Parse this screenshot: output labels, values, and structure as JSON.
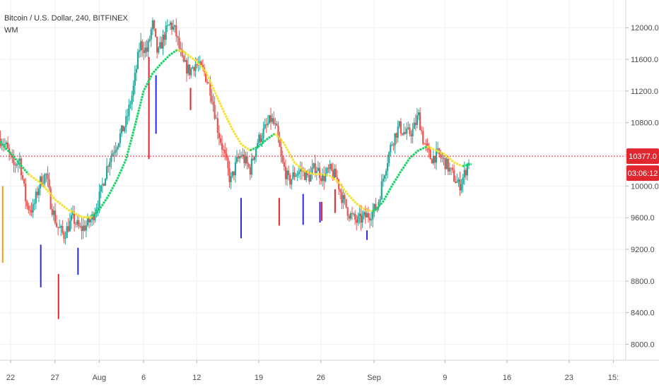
{
  "chart_data": {
    "type": "candlestick",
    "title": "Bitcoin / U.S. Dollar, 240, BITFINEX",
    "indicator": "WM",
    "y_ticks": [
      8000,
      8400,
      8800,
      9200,
      9600,
      10000,
      10400,
      10800,
      11200,
      11600,
      12000
    ],
    "y_tick_labels": [
      "8000.0",
      "8400.0",
      "8800.0",
      "9200.0",
      "9600.0",
      "10000.0",
      "10400.0",
      "10800.0",
      "11200.0",
      "11600.0",
      "12000.0"
    ],
    "ylim": [
      7800,
      12350
    ],
    "x_ticks": [
      {
        "label": "22",
        "day": -10
      },
      {
        "label": "27",
        "day": -5
      },
      {
        "label": "Aug",
        "day": 0
      },
      {
        "label": "6",
        "day": 5
      },
      {
        "label": "12",
        "day": 11
      },
      {
        "label": "19",
        "day": 18
      },
      {
        "label": "26",
        "day": 25
      },
      {
        "label": "Sep",
        "day": 31
      },
      {
        "label": "9",
        "day": 39
      },
      {
        "label": "16",
        "day": 46
      },
      {
        "label": "23",
        "day": 53
      },
      {
        "label": "15:",
        "day": 58
      }
    ],
    "xlim": [
      -11.2,
      59.4
    ],
    "price_anchors": [
      [
        -11.2,
        10600
      ],
      [
        -10.5,
        10500
      ],
      [
        -9.7,
        10250
      ],
      [
        -9.0,
        10350
      ],
      [
        -8.2,
        9750
      ],
      [
        -7.5,
        9700
      ],
      [
        -6.7,
        10050
      ],
      [
        -6.0,
        10150
      ],
      [
        -5.5,
        9800
      ],
      [
        -4.8,
        9500
      ],
      [
        -4.0,
        9380
      ],
      [
        -3.0,
        9600
      ],
      [
        -2.2,
        9450
      ],
      [
        -1.5,
        9500
      ],
      [
        -0.8,
        9600
      ],
      [
        0.0,
        9850
      ],
      [
        1.0,
        10300
      ],
      [
        2.0,
        10550
      ],
      [
        3.0,
        10800
      ],
      [
        3.8,
        11200
      ],
      [
        4.6,
        11800
      ],
      [
        5.4,
        11700
      ],
      [
        6.0,
        12050
      ],
      [
        6.6,
        11650
      ],
      [
        7.3,
        11900
      ],
      [
        8.0,
        12050
      ],
      [
        8.6,
        11950
      ],
      [
        9.4,
        11550
      ],
      [
        10.2,
        11450
      ],
      [
        10.8,
        11550
      ],
      [
        11.8,
        11450
      ],
      [
        12.6,
        11200
      ],
      [
        13.4,
        10700
      ],
      [
        14.2,
        10350
      ],
      [
        14.8,
        10050
      ],
      [
        15.5,
        10300
      ],
      [
        16.0,
        10400
      ],
      [
        17.0,
        10200
      ],
      [
        17.8,
        10550
      ],
      [
        18.6,
        10700
      ],
      [
        19.4,
        10850
      ],
      [
        20.0,
        10700
      ],
      [
        20.6,
        10300
      ],
      [
        21.4,
        10050
      ],
      [
        22.0,
        10150
      ],
      [
        22.8,
        10200
      ],
      [
        23.6,
        10100
      ],
      [
        24.4,
        10250
      ],
      [
        25.2,
        10100
      ],
      [
        26.0,
        10200
      ],
      [
        26.8,
        10100
      ],
      [
        27.4,
        9850
      ],
      [
        28.2,
        9650
      ],
      [
        29.0,
        9550
      ],
      [
        29.8,
        9600
      ],
      [
        30.6,
        9650
      ],
      [
        31.4,
        9750
      ],
      [
        32.2,
        10200
      ],
      [
        33.0,
        10550
      ],
      [
        33.8,
        10750
      ],
      [
        34.6,
        10650
      ],
      [
        35.4,
        10700
      ],
      [
        36.0,
        10900
      ],
      [
        36.6,
        10550
      ],
      [
        37.4,
        10350
      ],
      [
        38.2,
        10400
      ],
      [
        39.0,
        10300
      ],
      [
        39.8,
        10150
      ],
      [
        40.6,
        10000
      ],
      [
        41.2,
        10150
      ],
      [
        41.8,
        10377
      ]
    ],
    "ma_anchors": [
      [
        -11.2,
        10560
      ],
      [
        -9.5,
        10350
      ],
      [
        -8.0,
        10150
      ],
      [
        -6.5,
        10030
      ],
      [
        -5.0,
        9830
      ],
      [
        -3.5,
        9700
      ],
      [
        -2.0,
        9610
      ],
      [
        -1.0,
        9600
      ],
      [
        0.0,
        9700
      ],
      [
        1.0,
        9870
      ],
      [
        2.0,
        10080
      ],
      [
        3.0,
        10330
      ],
      [
        4.0,
        10750
      ],
      [
        5.0,
        11200
      ],
      [
        6.0,
        11420
      ],
      [
        7.0,
        11550
      ],
      [
        8.0,
        11660
      ],
      [
        8.8,
        11720
      ],
      [
        9.5,
        11700
      ],
      [
        11.0,
        11570
      ],
      [
        12.0,
        11450
      ],
      [
        13.0,
        11200
      ],
      [
        14.0,
        10950
      ],
      [
        15.0,
        10720
      ],
      [
        16.0,
        10530
      ],
      [
        17.0,
        10450
      ],
      [
        18.0,
        10500
      ],
      [
        19.0,
        10600
      ],
      [
        19.8,
        10660
      ],
      [
        20.8,
        10550
      ],
      [
        22.0,
        10300
      ],
      [
        23.0,
        10200
      ],
      [
        24.0,
        10150
      ],
      [
        25.0,
        10150
      ],
      [
        26.0,
        10130
      ],
      [
        27.0,
        10050
      ],
      [
        28.0,
        9900
      ],
      [
        29.0,
        9780
      ],
      [
        30.0,
        9700
      ],
      [
        31.0,
        9680
      ],
      [
        32.0,
        9800
      ],
      [
        33.0,
        10000
      ],
      [
        34.0,
        10180
      ],
      [
        35.0,
        10350
      ],
      [
        36.0,
        10450
      ],
      [
        37.0,
        10500
      ],
      [
        38.0,
        10450
      ],
      [
        39.0,
        10400
      ],
      [
        40.0,
        10300
      ],
      [
        41.0,
        10250
      ],
      [
        42.0,
        10280
      ]
    ],
    "trend_segments": [
      {
        "from": -11.2,
        "to": -8.0,
        "color": "#19d36a"
      },
      {
        "from": -8.0,
        "to": -0.8,
        "color": "#f5e12c"
      },
      {
        "from": -0.8,
        "to": 8.8,
        "color": "#19d36a"
      },
      {
        "from": 8.8,
        "to": 17.0,
        "color": "#f5e12c"
      },
      {
        "from": 17.0,
        "to": 19.8,
        "color": "#19d36a"
      },
      {
        "from": 19.8,
        "to": 30.8,
        "color": "#f5e12c"
      },
      {
        "from": 30.8,
        "to": 37.0,
        "color": "#19d36a"
      },
      {
        "from": 37.0,
        "to": 41.0,
        "color": "#f5e12c"
      },
      {
        "from": 41.0,
        "to": 42.0,
        "color": "#19d36a"
      }
    ],
    "signal_lines": [
      {
        "day": -10.9,
        "top": 10000,
        "bottom": 9030,
        "color": "#f59c0d"
      },
      {
        "day": -6.6,
        "top": 9260,
        "bottom": 8720,
        "color": "#2a2ae0"
      },
      {
        "day": -4.6,
        "top": 8890,
        "bottom": 8320,
        "color": "#e0262e"
      },
      {
        "day": -2.4,
        "top": 9220,
        "bottom": 8880,
        "color": "#2a2ae0"
      },
      {
        "day": 5.6,
        "top": 11630,
        "bottom": 10340,
        "color": "#e0262e"
      },
      {
        "day": 6.4,
        "top": 11400,
        "bottom": 10660,
        "color": "#2a2ae0"
      },
      {
        "day": 10.3,
        "top": 11240,
        "bottom": 10960,
        "color": "#e0262e"
      },
      {
        "day": 16.0,
        "top": 9850,
        "bottom": 9340,
        "color": "#2a2ae0"
      },
      {
        "day": 20.3,
        "top": 9850,
        "bottom": 9500,
        "color": "#e0262e"
      },
      {
        "day": 23.0,
        "top": 9900,
        "bottom": 9510,
        "color": "#2a2ae0"
      },
      {
        "day": 24.9,
        "top": 9800,
        "bottom": 9540,
        "color": "#2a2ae0"
      },
      {
        "day": 25.1,
        "top": 9800,
        "bottom": 9560,
        "color": "#e0262e"
      },
      {
        "day": 26.6,
        "top": 9960,
        "bottom": 9660,
        "color": "#e0262e"
      },
      {
        "day": 30.2,
        "top": 9440,
        "bottom": 9320,
        "color": "#2a2ae0"
      }
    ],
    "up_color": "#26a69a",
    "down_color": "#ef5350",
    "last_price": 10377,
    "last_price_label": "10377.0",
    "countdown_label": "03:06:12",
    "price_line_color": "#e0262e"
  }
}
